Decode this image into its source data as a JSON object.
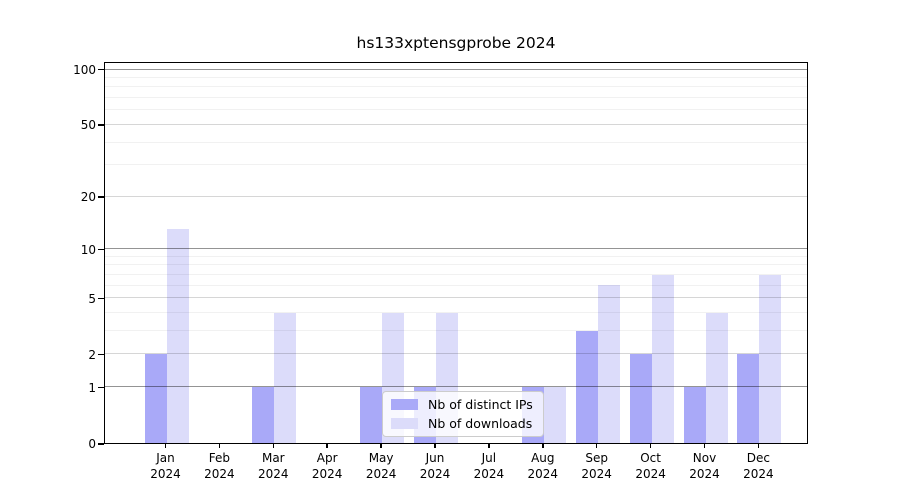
{
  "title": "hs133xptensgprobe 2024",
  "chart_data": {
    "type": "bar",
    "title": "hs133xptensgprobe 2024",
    "categories": [
      "Jan 2024",
      "Feb 2024",
      "Mar 2024",
      "Apr 2024",
      "May 2024",
      "Jun 2024",
      "Jul 2024",
      "Aug 2024",
      "Sep 2024",
      "Oct 2024",
      "Nov 2024",
      "Dec 2024"
    ],
    "x_tick_line1": [
      "Jan",
      "Feb",
      "Mar",
      "Apr",
      "May",
      "Jun",
      "Jul",
      "Aug",
      "Sep",
      "Oct",
      "Nov",
      "Dec"
    ],
    "x_tick_line2": [
      "2024",
      "2024",
      "2024",
      "2024",
      "2024",
      "2024",
      "2024",
      "2024",
      "2024",
      "2024",
      "2024",
      "2024"
    ],
    "series": [
      {
        "name": "Nb of distinct IPs",
        "color": "#a9a9f8",
        "values": [
          2,
          0,
          1,
          0,
          1,
          1,
          0,
          1,
          3,
          2,
          1,
          2
        ]
      },
      {
        "name": "Nb of downloads",
        "color": "#dcdcfa",
        "values": [
          13,
          0,
          4,
          0,
          4,
          4,
          0,
          1,
          6,
          7,
          4,
          7
        ]
      }
    ],
    "xlabel": "",
    "ylabel": "",
    "yscale": "log10(1+x)",
    "ylim": [
      0,
      110
    ],
    "yticks": [
      0,
      1,
      2,
      5,
      10,
      20,
      50,
      100
    ],
    "yticks_emphasized": [
      1,
      10,
      100
    ],
    "yticks_minor": [
      3,
      4,
      6,
      7,
      8,
      9,
      30,
      40,
      60,
      70,
      80,
      90
    ],
    "grid": true,
    "legend_position": "lower center"
  },
  "legend": {
    "items": [
      {
        "label": "Nb of distinct IPs",
        "color": "#a9a9f8"
      },
      {
        "label": "Nb of downloads",
        "color": "#dcdcfa"
      }
    ]
  }
}
